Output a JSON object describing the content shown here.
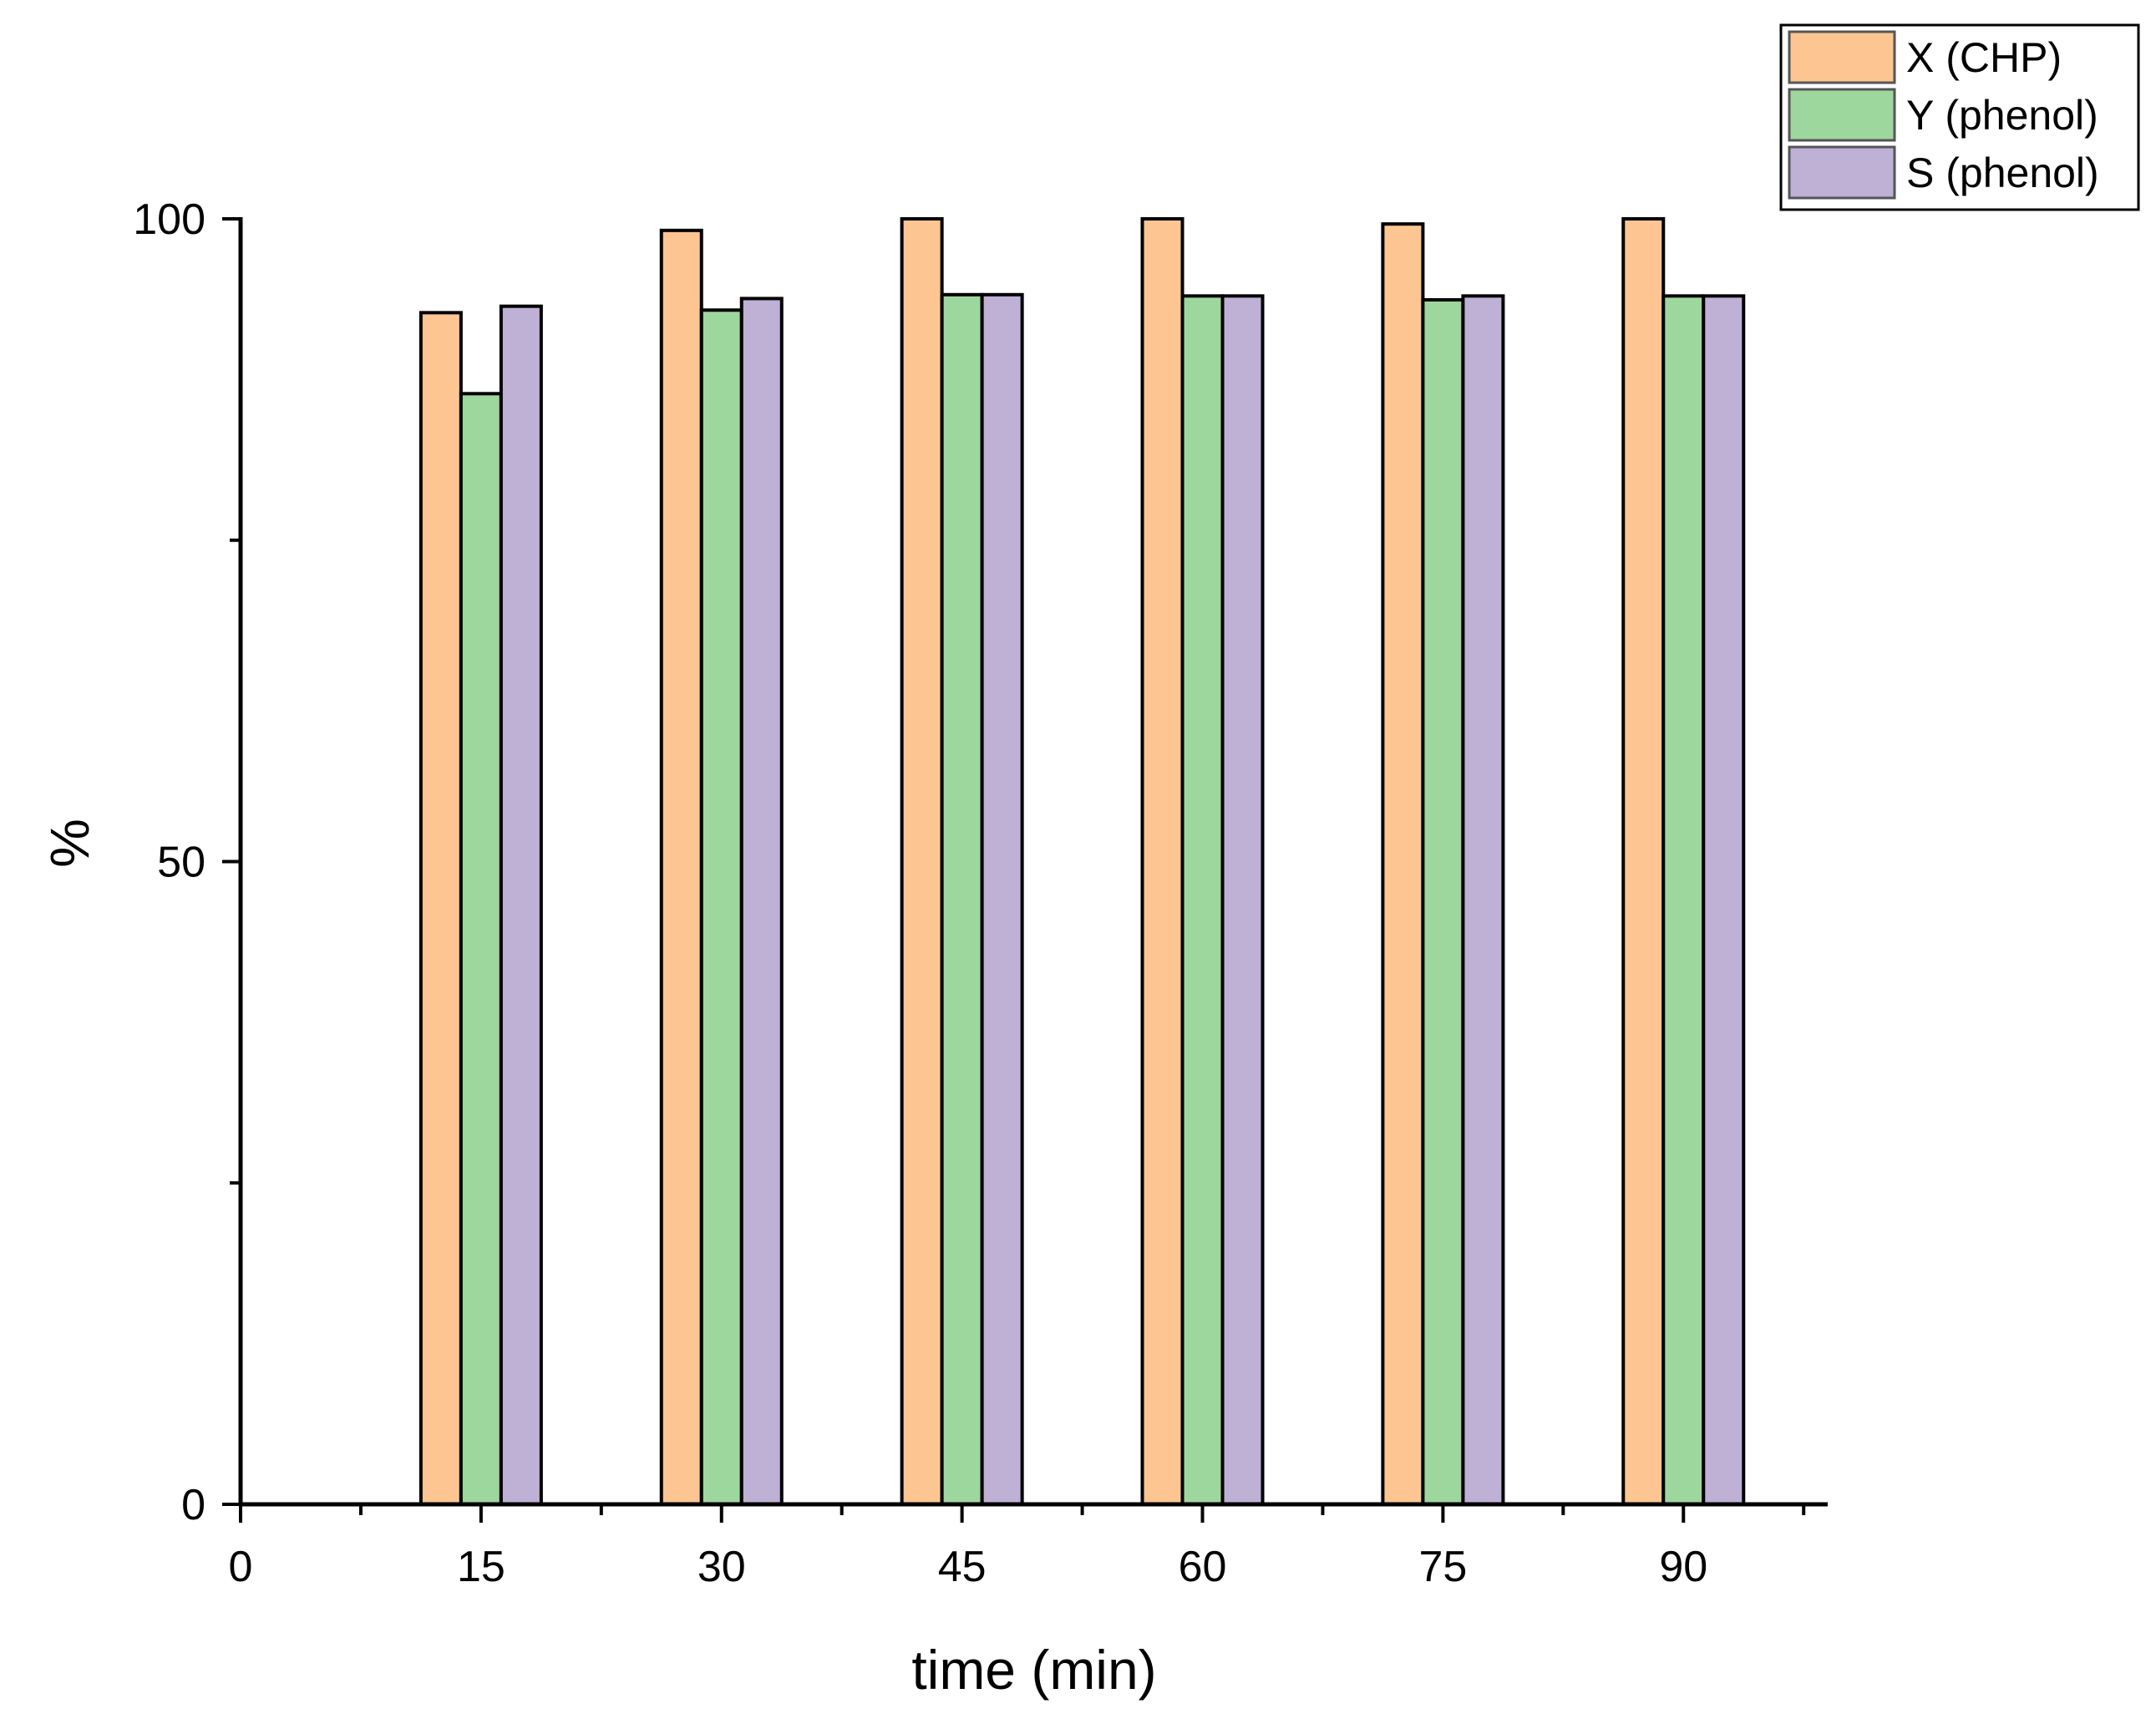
{
  "chart_data": {
    "type": "bar",
    "xlabel": "time (min)",
    "ylabel": "%",
    "x_ticks": [
      0,
      15,
      30,
      45,
      60,
      75,
      90
    ],
    "x_range": [
      0,
      99
    ],
    "y_ticks": [
      0,
      50,
      100
    ],
    "y_minor_ticks": [
      25,
      75
    ],
    "ylim": [
      0,
      100
    ],
    "categories": [
      15,
      30,
      45,
      60,
      75,
      90
    ],
    "series": [
      {
        "name": "X (CHP)",
        "color": "#FDC592",
        "values": [
          92.7,
          99.1,
          100,
          100,
          99.6,
          100
        ]
      },
      {
        "name": "Y (phenol)",
        "color": "#9ED79E",
        "values": [
          86.4,
          92.9,
          94.1,
          94.0,
          93.7,
          94.0
        ]
      },
      {
        "name": "S (phenol)",
        "color": "#BFB0D6",
        "values": [
          93.2,
          93.8,
          94.1,
          94.0,
          94.0,
          94.0
        ]
      }
    ],
    "legend_position": "top-right",
    "grid": false
  }
}
